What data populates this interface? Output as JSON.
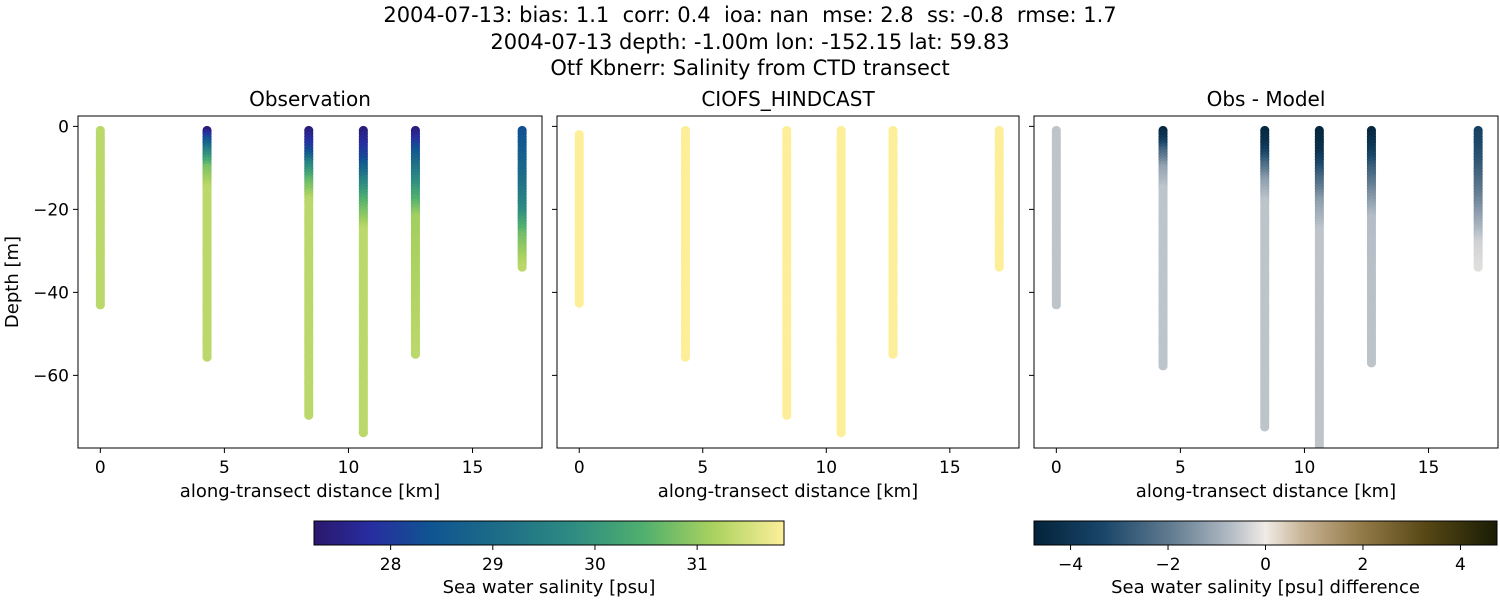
{
  "titles": {
    "line1": "2004-07-13: bias: 1.1  corr: 0.4  ioa: nan  mse: 2.8  ss: -0.8  rmse: 1.7",
    "line2": "2004-07-13 depth: -1.00m lon: -152.15 lat: 59.83",
    "line3": "Otf Kbnerr: Salinity from CTD transect"
  },
  "chart_data": [
    {
      "type": "scatter",
      "title": "Observation",
      "xlabel": "along-transect distance [km]",
      "ylabel": "Depth [m]",
      "xlim": [
        -0.9,
        17.8
      ],
      "ylim": [
        -77.5,
        2.5
      ],
      "xticks": [
        0,
        5,
        10,
        15
      ],
      "yticks": [
        0,
        -20,
        -40,
        -60
      ],
      "colormap": "haline",
      "series": [
        {
          "x": 0.0,
          "depth_min": -43,
          "profile": [
            [
              0,
              31.3
            ],
            [
              -43,
              31.3
            ]
          ]
        },
        {
          "x": 4.3,
          "depth_min": -56,
          "profile": [
            [
              -1,
              27.4
            ],
            [
              -3,
              28.2
            ],
            [
              -6,
              29.5
            ],
            [
              -10,
              30.8
            ],
            [
              -15,
              31.3
            ],
            [
              -56,
              31.3
            ]
          ]
        },
        {
          "x": 8.4,
          "depth_min": -70,
          "profile": [
            [
              -1,
              27.4
            ],
            [
              -6,
              28.2
            ],
            [
              -9,
              29.5
            ],
            [
              -13,
              30.6
            ],
            [
              -18,
              31.3
            ],
            [
              -70,
              31.3
            ]
          ]
        },
        {
          "x": 10.6,
          "depth_min": -74,
          "profile": [
            [
              -1,
              27.4
            ],
            [
              -8,
              28.2
            ],
            [
              -13,
              29.5
            ],
            [
              -18,
              30.5
            ],
            [
              -25,
              31.3
            ],
            [
              -74,
              31.3
            ]
          ]
        },
        {
          "x": 12.7,
          "depth_min": -55,
          "profile": [
            [
              -1,
              27.4
            ],
            [
              -5,
              28.2
            ],
            [
              -10,
              29.2
            ],
            [
              -16,
              30.2
            ],
            [
              -22,
              31.1
            ],
            [
              -55,
              31.3
            ]
          ]
        },
        {
          "x": 17.0,
          "depth_min": -34,
          "profile": [
            [
              -1,
              28.3
            ],
            [
              -12,
              29.0
            ],
            [
              -20,
              29.7
            ],
            [
              -26,
              30.7
            ],
            [
              -34,
              31.3
            ]
          ]
        }
      ]
    },
    {
      "type": "scatter",
      "title": "CIOFS_HINDCAST",
      "xlabel": "along-transect distance [km]",
      "xlim": [
        -0.9,
        17.8
      ],
      "ylim": [
        -77.5,
        2.5
      ],
      "xticks": [
        0,
        5,
        10,
        15
      ],
      "colormap": "haline",
      "series": [
        {
          "x": 0.0,
          "depth_min": -43,
          "depth_max": -2,
          "profile": [
            [
              -2,
              31.9
            ],
            [
              -43,
              31.9
            ]
          ]
        },
        {
          "x": 4.3,
          "depth_min": -56,
          "profile": [
            [
              -1,
              31.9
            ],
            [
              -56,
              31.9
            ]
          ]
        },
        {
          "x": 8.4,
          "depth_min": -70,
          "profile": [
            [
              -1,
              31.9
            ],
            [
              -70,
              31.9
            ]
          ]
        },
        {
          "x": 10.6,
          "depth_min": -74,
          "profile": [
            [
              -1,
              31.9
            ],
            [
              -74,
              31.9
            ]
          ]
        },
        {
          "x": 12.7,
          "depth_min": -55,
          "profile": [
            [
              -1,
              31.9
            ],
            [
              -55,
              31.9
            ]
          ]
        },
        {
          "x": 17.0,
          "depth_min": -34,
          "profile": [
            [
              -1,
              31.9
            ],
            [
              -34,
              31.9
            ]
          ]
        }
      ]
    },
    {
      "type": "scatter",
      "title": "Obs - Model",
      "xlabel": "along-transect distance [km]",
      "xlim": [
        -0.9,
        17.8
      ],
      "ylim": [
        -77.5,
        2.5
      ],
      "xticks": [
        0,
        5,
        10,
        15
      ],
      "colormap": "diff",
      "series": [
        {
          "x": 0.0,
          "depth_min": -43,
          "profile": [
            [
              0,
              -0.6
            ],
            [
              -43,
              -0.6
            ]
          ]
        },
        {
          "x": 4.3,
          "depth_min": -58,
          "profile": [
            [
              0,
              -4.7
            ],
            [
              -3,
              -4.0
            ],
            [
              -6,
              -2.5
            ],
            [
              -10,
              -1.2
            ],
            [
              -15,
              -0.6
            ],
            [
              -58,
              -0.6
            ]
          ]
        },
        {
          "x": 8.4,
          "depth_min": -73,
          "profile": [
            [
              0,
              -4.7
            ],
            [
              -5,
              -4.0
            ],
            [
              -9,
              -2.5
            ],
            [
              -13,
              -1.3
            ],
            [
              -18,
              -0.6
            ],
            [
              -73,
              -0.6
            ]
          ]
        },
        {
          "x": 10.6,
          "depth_min": -80,
          "profile": [
            [
              0,
              -4.7
            ],
            [
              -6,
              -4.2
            ],
            [
              -12,
              -2.6
            ],
            [
              -18,
              -1.3
            ],
            [
              -25,
              -0.6
            ],
            [
              -80,
              -0.6
            ]
          ]
        },
        {
          "x": 12.7,
          "depth_min": -57,
          "profile": [
            [
              0,
              -4.7
            ],
            [
              -5,
              -4.0
            ],
            [
              -10,
              -2.7
            ],
            [
              -16,
              -1.6
            ],
            [
              -22,
              -0.7
            ],
            [
              -57,
              -0.6
            ]
          ]
        },
        {
          "x": 17.0,
          "depth_min": -34,
          "profile": [
            [
              0,
              -3.6
            ],
            [
              -8,
              -3.0
            ],
            [
              -15,
              -2.1
            ],
            [
              -22,
              -1.2
            ],
            [
              -28,
              -0.4
            ],
            [
              -34,
              -0.2
            ]
          ]
        }
      ]
    }
  ],
  "colorbars": [
    {
      "label": "Sea water salinity [psu]",
      "range": [
        27.25,
        31.85
      ],
      "ticks": [
        28,
        29,
        30,
        31
      ],
      "colormap": "haline"
    },
    {
      "label": "Sea water salinity [psu] difference",
      "range": [
        -4.75,
        4.75
      ],
      "ticks": [
        -4,
        -2,
        0,
        2,
        4
      ],
      "colormap": "diff"
    }
  ]
}
